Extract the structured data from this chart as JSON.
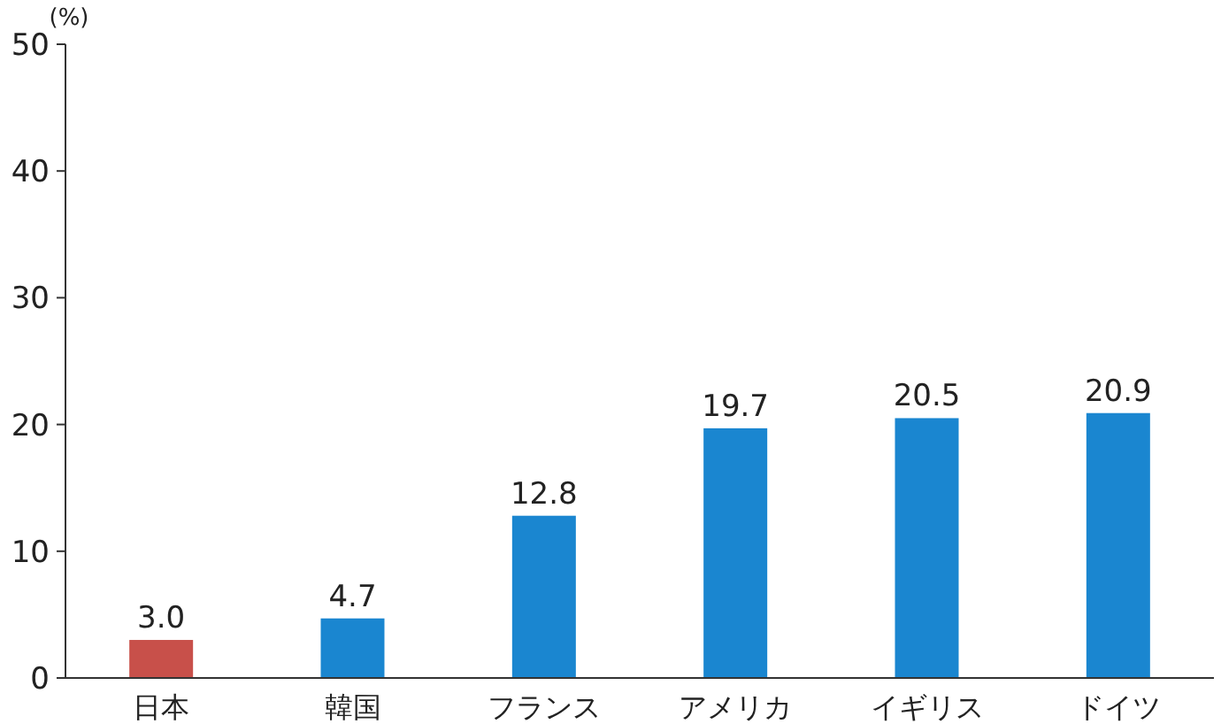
{
  "chart_data": {
    "type": "bar",
    "ylabel": "(%)",
    "categories": [
      "日本",
      "韓国",
      "フランス",
      "アメリカ",
      "イギリス",
      "ドイツ"
    ],
    "values": [
      3.0,
      4.7,
      12.8,
      19.7,
      20.5,
      20.9
    ],
    "value_labels": [
      "3.0",
      "4.7",
      "12.8",
      "19.7",
      "20.5",
      "20.9"
    ],
    "colors": [
      "#c8504a",
      "#1a86d0",
      "#1a86d0",
      "#1a86d0",
      "#1a86d0",
      "#1a86d0"
    ],
    "ylim": [
      0,
      50
    ],
    "yticks": [
      0,
      10,
      20,
      30,
      40,
      50
    ],
    "grid": false
  }
}
